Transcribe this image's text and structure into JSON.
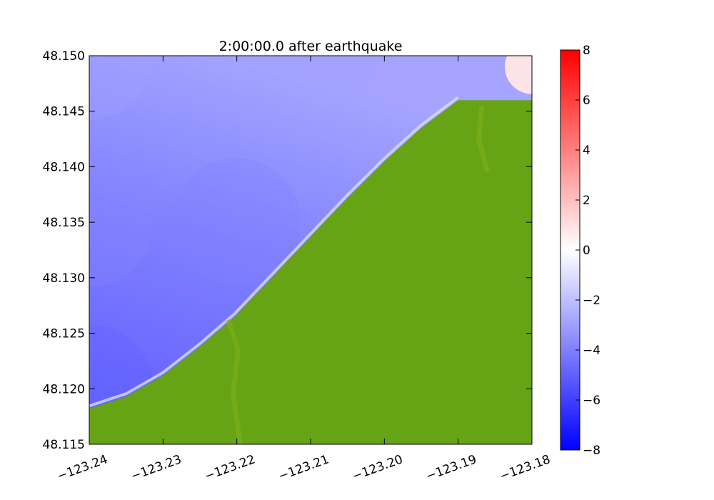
{
  "chart_data": {
    "type": "heatmap",
    "title": "2:00:00.0 after earthquake",
    "xlabel": "",
    "ylabel": "",
    "xlim": [
      -123.24,
      -123.18
    ],
    "ylim": [
      48.115,
      48.15
    ],
    "x_ticks": [
      -123.24,
      -123.23,
      -123.22,
      -123.21,
      -123.2,
      -123.19,
      -123.18
    ],
    "x_tick_labels": [
      "−123.24",
      "−123.23",
      "−123.22",
      "−123.21",
      "−123.20",
      "−123.19",
      "−123.18"
    ],
    "y_ticks": [
      48.115,
      48.12,
      48.125,
      48.13,
      48.135,
      48.14,
      48.145,
      48.15
    ],
    "y_tick_labels": [
      "48.115",
      "48.120",
      "48.125",
      "48.130",
      "48.135",
      "48.140",
      "48.145",
      "48.150"
    ],
    "colorbar": {
      "range": [
        -8,
        8
      ],
      "ticks": [
        -8,
        -6,
        -4,
        -2,
        0,
        2,
        4,
        6,
        8
      ],
      "tick_labels": [
        "−8",
        "−6",
        "−4",
        "−2",
        "0",
        "2",
        "4",
        "6",
        "8"
      ],
      "colors": [
        "#0000ff",
        "#ffffff",
        "#ff0000"
      ]
    },
    "land_color": "#66a315",
    "shoreline": [
      {
        "lon": -123.24,
        "lat": 48.1182
      },
      {
        "lon": -123.235,
        "lat": 48.1193
      },
      {
        "lon": -123.23,
        "lat": 48.1212
      },
      {
        "lon": -123.225,
        "lat": 48.1238
      },
      {
        "lon": -123.2203,
        "lat": 48.1265
      },
      {
        "lon": -123.215,
        "lat": 48.1302
      },
      {
        "lon": -123.21,
        "lat": 48.1337
      },
      {
        "lon": -123.205,
        "lat": 48.1372
      },
      {
        "lon": -123.2,
        "lat": 48.1405
      },
      {
        "lon": -123.195,
        "lat": 48.1435
      },
      {
        "lon": -123.19,
        "lat": 48.146
      },
      {
        "lon": -123.18,
        "lat": 48.146
      }
    ],
    "surface_samples": [
      {
        "lon": -123.24,
        "lat": 48.15,
        "value": -2.9
      },
      {
        "lon": -123.21,
        "lat": 48.15,
        "value": -3.0
      },
      {
        "lon": -123.185,
        "lat": 48.15,
        "value": -2.8
      },
      {
        "lon": -123.24,
        "lat": 48.135,
        "value": -3.8
      },
      {
        "lon": -123.22,
        "lat": 48.135,
        "value": -4.0
      },
      {
        "lon": -123.24,
        "lat": 48.12,
        "value": -5.0
      },
      {
        "lon": -123.18,
        "lat": 48.149,
        "value": 0.8
      }
    ]
  }
}
